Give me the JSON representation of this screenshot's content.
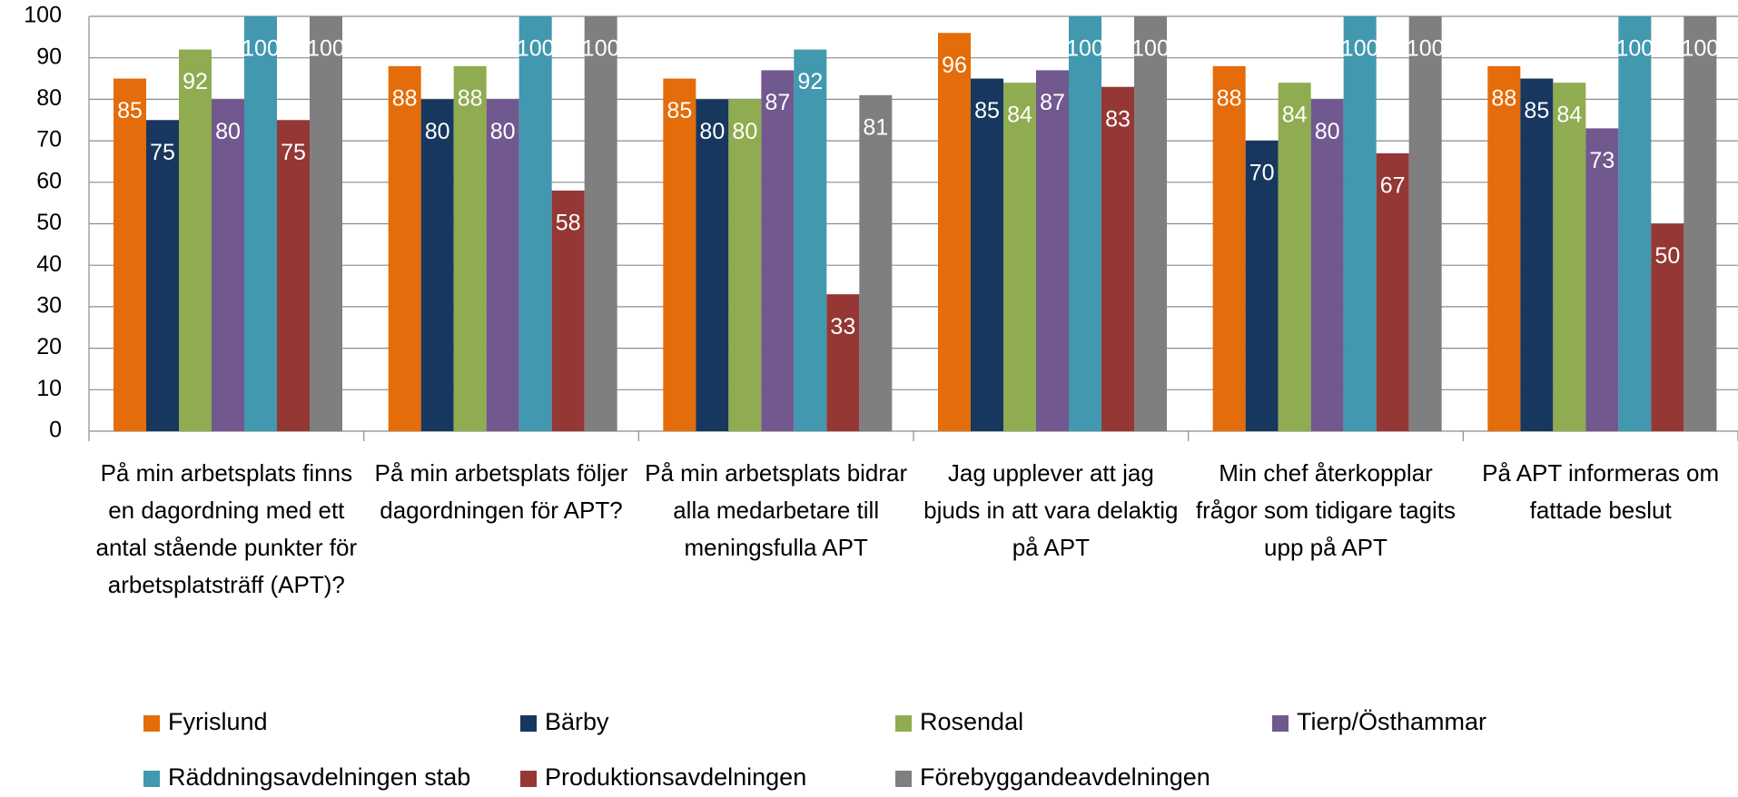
{
  "chart_data": {
    "type": "bar",
    "categories": [
      "På min arbetsplats finns en dagordning med ett antal stående punkter för arbetsplatsträff (APT)?",
      "På min arbetsplats följer dagordningen för APT?",
      "På min arbetsplats bidrar alla medarbetare till meningsfulla APT",
      "Jag upplever att jag bjuds in att vara delaktig på APT",
      "Min chef återkopplar frågor som tidigare tagits upp på APT",
      "På APT informeras om fattade beslut"
    ],
    "series": [
      {
        "name": "Fyrislund",
        "color": "#e46c0a",
        "values": [
          85,
          88,
          85,
          96,
          88,
          88
        ]
      },
      {
        "name": "Bärby",
        "color": "#17375e",
        "values": [
          75,
          80,
          80,
          85,
          70,
          85
        ]
      },
      {
        "name": "Rosendal",
        "color": "#8fac50",
        "values": [
          92,
          88,
          80,
          84,
          84,
          84
        ]
      },
      {
        "name": "Tierp/Östhammar",
        "color": "#71588f",
        "values": [
          80,
          80,
          87,
          87,
          80,
          73
        ]
      },
      {
        "name": "Räddningsavdelningen stab",
        "color": "#4198af",
        "values": [
          100,
          100,
          92,
          100,
          100,
          100
        ]
      },
      {
        "name": "Produktionsavdelningen",
        "color": "#953735",
        "values": [
          75,
          58,
          33,
          83,
          67,
          50
        ]
      },
      {
        "name": "Förebyggandeavdelningen",
        "color": "#7f7f7f",
        "values": [
          100,
          100,
          81,
          100,
          100,
          100
        ]
      }
    ],
    "ylim": [
      0,
      100
    ],
    "yticks": [
      0,
      10,
      20,
      30,
      40,
      50,
      60,
      70,
      80,
      90,
      100
    ],
    "grid": true,
    "legend": "bottom"
  }
}
